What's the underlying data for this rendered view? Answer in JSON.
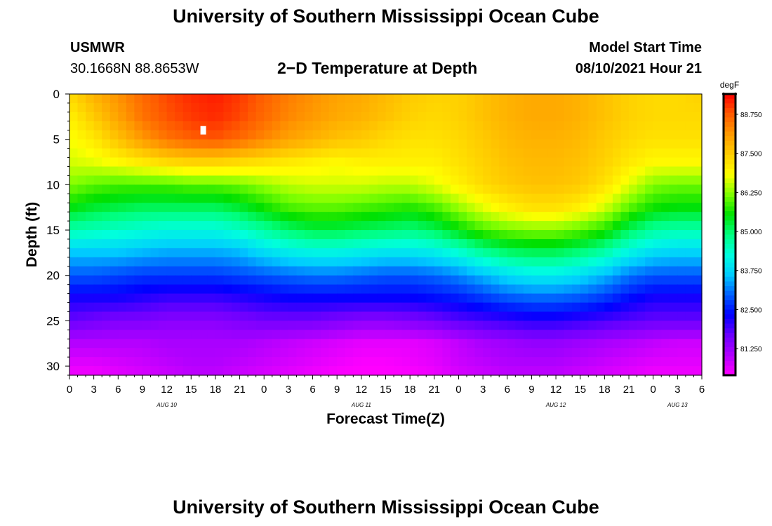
{
  "header": {
    "title": "University of Southern Mississippi Ocean Cube",
    "station": "USMWR",
    "coords": "30.1668N  88.8653W",
    "plot_title": "2−D Temperature at Depth",
    "run_label": "Model Start Time",
    "run_time": "08/10/2021 Hour 21"
  },
  "footer": {
    "title": "University of Southern Mississippi Ocean Cube"
  },
  "chart_data": {
    "type": "heatmap",
    "title": "2−D Temperature at Depth",
    "xlabel": "Forecast Time(Z)",
    "ylabel": "Depth (ft)",
    "x_hours_range": [
      0,
      78
    ],
    "y_range": [
      0,
      31
    ],
    "x_tick_labels": [
      "0",
      "3",
      "6",
      "9",
      "12",
      "15",
      "18",
      "21",
      "0",
      "3",
      "6",
      "9",
      "12",
      "15",
      "18",
      "21",
      "0",
      "3",
      "6",
      "9",
      "12",
      "15",
      "18",
      "21",
      "0",
      "3",
      "6"
    ],
    "y_ticks": [
      0,
      5,
      10,
      15,
      20,
      25,
      30
    ],
    "date_labels": [
      {
        "text": "AUG 10",
        "hour": 12
      },
      {
        "text": "AUG 11",
        "hour": 36
      },
      {
        "text": "AUG 12",
        "hour": 60
      },
      {
        "text": "AUG 13",
        "hour": 75
      }
    ],
    "colorbar": {
      "unit": "degF",
      "min": 80.4,
      "max": 89.4,
      "tick_labels": [
        "88.750",
        "87.500",
        "86.250",
        "85.000",
        "83.750",
        "82.500",
        "81.250"
      ],
      "colors": [
        "#ff00ff",
        "#b000ff",
        "#6a00ff",
        "#0000ff",
        "#0060ff",
        "#00ccff",
        "#00ffdd",
        "#00ff80",
        "#00e000",
        "#80ff00",
        "#ffff00",
        "#ffcc00",
        "#ff9900",
        "#ff5a00",
        "#ff0000"
      ]
    },
    "grid": {
      "hours": [
        0,
        3,
        6,
        9,
        12,
        15,
        18,
        21,
        24,
        27,
        30,
        33,
        36,
        39,
        42,
        45,
        48,
        51,
        54,
        57,
        60,
        63,
        66,
        69,
        72,
        75,
        78
      ],
      "depths": [
        0,
        2.5,
        5,
        7.5,
        10,
        12.5,
        15,
        17.5,
        20,
        22.5,
        25,
        27.5,
        30,
        31
      ]
    },
    "values": [
      [
        87.3,
        87.8,
        88.2,
        88.6,
        88.9,
        89.1,
        89.2,
        89.0,
        88.7,
        88.4,
        88.2,
        88.0,
        87.9,
        87.7,
        87.5,
        87.4,
        87.4,
        87.6,
        87.8,
        87.9,
        87.9,
        87.8,
        87.6,
        87.4,
        87.3,
        87.3,
        87.4
      ],
      [
        87.0,
        87.5,
        88.0,
        88.5,
        88.8,
        89.0,
        89.1,
        88.9,
        88.6,
        88.3,
        88.1,
        87.9,
        87.8,
        87.6,
        87.4,
        87.3,
        87.4,
        87.6,
        87.8,
        87.9,
        87.9,
        87.8,
        87.6,
        87.4,
        87.3,
        87.3,
        87.3
      ],
      [
        86.8,
        87.1,
        87.6,
        88.1,
        88.5,
        88.7,
        88.8,
        88.6,
        88.3,
        88.0,
        87.8,
        87.6,
        87.5,
        87.3,
        87.2,
        87.2,
        87.3,
        87.5,
        87.7,
        87.8,
        87.8,
        87.7,
        87.5,
        87.3,
        87.2,
        87.2,
        87.2
      ],
      [
        86.6,
        86.7,
        86.9,
        87.1,
        87.3,
        87.4,
        87.4,
        87.3,
        87.2,
        87.1,
        87.0,
        86.9,
        87.0,
        87.0,
        87.0,
        87.0,
        87.2,
        87.4,
        87.6,
        87.7,
        87.7,
        87.6,
        87.4,
        87.1,
        86.9,
        86.9,
        86.9
      ],
      [
        86.2,
        86.0,
        85.9,
        85.9,
        85.9,
        86.0,
        86.0,
        86.1,
        86.3,
        86.5,
        86.6,
        86.6,
        86.6,
        86.5,
        86.5,
        86.7,
        87.0,
        87.3,
        87.5,
        87.6,
        87.6,
        87.5,
        87.2,
        86.7,
        86.2,
        86.1,
        86.1
      ],
      [
        85.5,
        85.3,
        85.2,
        85.1,
        85.1,
        85.1,
        85.1,
        85.3,
        85.6,
        85.9,
        86.0,
        86.0,
        85.9,
        85.8,
        85.7,
        85.9,
        86.3,
        86.7,
        87.0,
        87.2,
        87.2,
        87.0,
        86.6,
        86.0,
        85.6,
        85.5,
        85.5
      ],
      [
        84.6,
        84.5,
        84.4,
        84.3,
        84.2,
        84.2,
        84.2,
        84.4,
        84.7,
        85.0,
        85.2,
        85.2,
        85.1,
        85.0,
        84.9,
        85.1,
        85.5,
        85.9,
        86.1,
        86.2,
        86.2,
        86.0,
        85.7,
        85.1,
        84.7,
        84.6,
        84.6
      ],
      [
        83.6,
        83.6,
        83.6,
        83.5,
        83.4,
        83.4,
        83.4,
        83.5,
        83.8,
        84.0,
        84.1,
        84.1,
        84.0,
        83.9,
        83.9,
        84.0,
        84.3,
        84.7,
        85.0,
        85.1,
        85.1,
        84.9,
        84.6,
        84.1,
        83.8,
        83.7,
        83.7
      ],
      [
        82.9,
        82.9,
        82.8,
        82.7,
        82.7,
        82.7,
        82.7,
        82.8,
        82.9,
        83.0,
        83.1,
        83.1,
        83.0,
        82.9,
        82.9,
        83.0,
        83.2,
        83.5,
        83.8,
        84.0,
        84.0,
        83.8,
        83.5,
        83.1,
        82.9,
        82.9,
        82.9
      ],
      [
        82.2,
        82.2,
        82.2,
        82.1,
        82.0,
        82.0,
        82.0,
        82.1,
        82.2,
        82.3,
        82.3,
        82.3,
        82.3,
        82.3,
        82.3,
        82.4,
        82.5,
        82.7,
        82.9,
        83.0,
        83.0,
        82.9,
        82.7,
        82.4,
        82.2,
        82.2,
        82.2
      ],
      [
        81.7,
        81.6,
        81.5,
        81.5,
        81.4,
        81.4,
        81.4,
        81.5,
        81.6,
        81.6,
        81.6,
        81.5,
        81.4,
        81.4,
        81.5,
        81.6,
        81.8,
        81.9,
        82.0,
        82.1,
        82.1,
        82.0,
        81.9,
        81.8,
        81.7,
        81.7,
        81.7
      ],
      [
        81.0,
        81.0,
        81.0,
        81.0,
        81.1,
        81.1,
        81.1,
        81.1,
        81.0,
        80.9,
        80.8,
        80.7,
        80.6,
        80.6,
        80.6,
        80.7,
        80.9,
        81.1,
        81.2,
        81.3,
        81.3,
        81.2,
        81.1,
        81.0,
        80.9,
        80.8,
        80.8
      ],
      [
        80.6,
        80.6,
        80.7,
        80.8,
        80.9,
        81.0,
        81.0,
        80.9,
        80.8,
        80.7,
        80.6,
        80.5,
        80.4,
        80.4,
        80.5,
        80.6,
        80.8,
        80.9,
        81.0,
        81.0,
        81.0,
        80.9,
        80.8,
        80.7,
        80.6,
        80.6,
        80.6
      ],
      [
        80.5,
        80.5,
        80.6,
        80.7,
        80.8,
        80.9,
        80.9,
        80.8,
        80.7,
        80.6,
        80.5,
        80.4,
        80.4,
        80.4,
        80.4,
        80.5,
        80.7,
        80.8,
        80.9,
        80.9,
        80.9,
        80.8,
        80.7,
        80.6,
        80.5,
        80.5,
        80.5
      ]
    ],
    "missing_cells": [
      {
        "hour": 16.5,
        "depth": 4
      }
    ]
  }
}
